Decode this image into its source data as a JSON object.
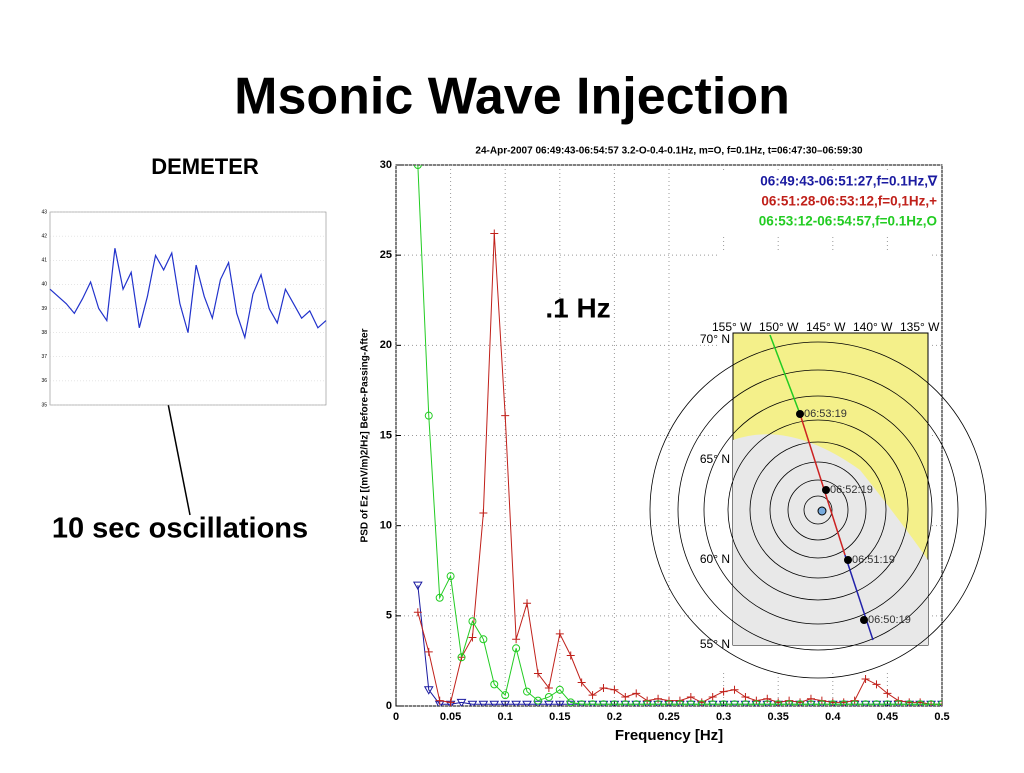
{
  "slide": {
    "title": "Msonic Wave Injection",
    "left_label": "DEMETER",
    "annotation": "10 sec oscillations",
    "peak_label": ".1 Hz"
  },
  "chart_data": [
    {
      "type": "line",
      "title": "24-Apr-2007 06:49:43-06:54:57 3.2-O-0.4-0.1Hz, m=O, f=0.1Hz, t=06:47:30–06:59:30",
      "x_label": "Frequency [Hz]",
      "y_label": "PSD of Ez [(mV/m)2/Hz] Before-Passing-After",
      "x": [
        0.02,
        0.03,
        0.04,
        0.05,
        0.06,
        0.07,
        0.08,
        0.09,
        0.1,
        0.11,
        0.12,
        0.13,
        0.14,
        0.15,
        0.16,
        0.17,
        0.18,
        0.19,
        0.2,
        0.21,
        0.22,
        0.23,
        0.24,
        0.25,
        0.26,
        0.27,
        0.28,
        0.29,
        0.3,
        0.31,
        0.32,
        0.33,
        0.34,
        0.35,
        0.36,
        0.37,
        0.38,
        0.39,
        0.4,
        0.41,
        0.42,
        0.43,
        0.44,
        0.45,
        0.46,
        0.47,
        0.48,
        0.49,
        0.5
      ],
      "series": [
        {
          "name": "06:49:43-06:51:27,f=0.1Hz,∇",
          "color": "#1a1aa0",
          "marker": "triangle",
          "values": [
            6.7,
            0.9,
            0.1,
            0.1,
            0.2,
            0.1,
            0.1,
            0.1,
            0.1,
            0.1,
            0.1,
            0.1,
            0.1,
            0.1,
            0.1,
            0.1,
            0.1,
            0.1,
            0.1,
            0.1,
            0.1,
            0.1,
            0.1,
            0.1,
            0.1,
            0.1,
            0.1,
            0.1,
            0.1,
            0.1,
            0.1,
            0.1,
            0.1,
            0.1,
            0.1,
            0.1,
            0.1,
            0.1,
            0.1,
            0.1,
            0.1,
            0.1,
            0.1,
            0.1,
            0.1,
            0.1,
            0.1,
            0.1,
            0.1
          ]
        },
        {
          "name": "06:51:28-06:53:12,f=0,1Hz,+",
          "color": "#c0201a",
          "marker": "plus",
          "values": [
            5.2,
            3.0,
            0.3,
            0.2,
            2.7,
            3.8,
            10.7,
            26.2,
            16.1,
            3.7,
            5.7,
            1.8,
            1.0,
            4.0,
            2.8,
            1.3,
            0.6,
            1.0,
            0.9,
            0.5,
            0.7,
            0.3,
            0.4,
            0.3,
            0.3,
            0.5,
            0.2,
            0.5,
            0.8,
            0.9,
            0.5,
            0.3,
            0.4,
            0.2,
            0.3,
            0.2,
            0.4,
            0.3,
            0.2,
            0.2,
            0.3,
            1.5,
            1.2,
            0.7,
            0.3,
            0.2,
            0.2,
            0.1,
            0.1
          ]
        },
        {
          "name": "06:53:12-06:54:57,f=0.1Hz,O",
          "color": "#22cc22",
          "marker": "circle",
          "values": [
            30,
            16.1,
            6.0,
            7.2,
            2.7,
            4.7,
            3.7,
            1.2,
            0.6,
            3.2,
            0.8,
            0.3,
            0.5,
            0.9,
            0.2,
            0.1,
            0.1,
            0.1,
            0.1,
            0.1,
            0.1,
            0.1,
            0.1,
            0.1,
            0.1,
            0.1,
            0.1,
            0.1,
            0.1,
            0.1,
            0.1,
            0.1,
            0.1,
            0.1,
            0.1,
            0.1,
            0.1,
            0.1,
            0.1,
            0.1,
            0.1,
            0.1,
            0.1,
            0.1,
            0.1,
            0.1,
            0.1,
            0.1,
            0.1
          ]
        }
      ],
      "xlim": [
        0,
        0.5
      ],
      "xticks": [
        0,
        0.05,
        0.1,
        0.15,
        0.2,
        0.25,
        0.3,
        0.35,
        0.4,
        0.45,
        0.5
      ],
      "ylim": [
        0,
        30
      ],
      "yticks": [
        0,
        5,
        10,
        15,
        20,
        25,
        30
      ],
      "grid": true,
      "legend": "upper right"
    },
    {
      "type": "line",
      "color": "#2233cc",
      "values": [
        39.8,
        39.5,
        39.2,
        38.8,
        39.4,
        40.1,
        39.0,
        38.5,
        41.5,
        39.8,
        40.5,
        38.2,
        39.5,
        41.2,
        40.6,
        41.3,
        39.2,
        38.0,
        40.8,
        39.5,
        38.6,
        40.2,
        40.9,
        38.8,
        37.8,
        39.6,
        40.4,
        39.0,
        38.4,
        39.8,
        39.2,
        38.6,
        38.9,
        38.2,
        38.5
      ],
      "ylim": [
        35,
        43
      ],
      "yticks": [
        35,
        36,
        37,
        38,
        39,
        40,
        41,
        42,
        43
      ],
      "grid": true
    }
  ],
  "map": {
    "lon_labels": [
      "155° W",
      "150° W",
      "145° W",
      "140° W",
      "135° W"
    ],
    "lat_labels": [
      "70° N",
      "65° N",
      "60° N",
      "55° N"
    ],
    "time_labels": [
      "06:53:19",
      "06:52:19",
      "06:51:19",
      "06:50:19"
    ]
  }
}
